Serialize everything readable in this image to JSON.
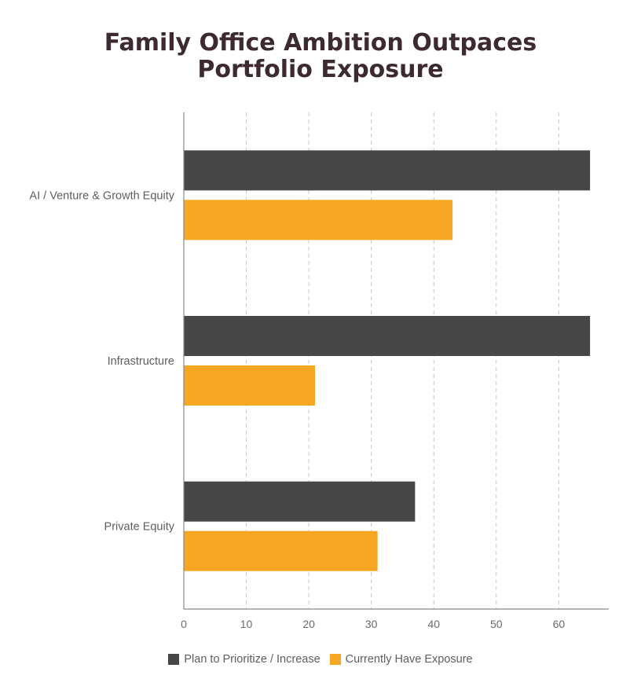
{
  "chart_data": {
    "type": "bar",
    "orientation": "horizontal",
    "title_lines": [
      "Family Office Ambition Outpaces",
      "Portfolio Exposure"
    ],
    "categories": [
      "AI / Venture & Growth Equity",
      "Infrastructure",
      "Private Equity"
    ],
    "series": [
      {
        "name": "Plan to Prioritize / Increase",
        "color": "#474747",
        "values": [
          65,
          65,
          37
        ]
      },
      {
        "name": "Currently Have Exposure",
        "color": "#f5a623",
        "values": [
          43,
          21,
          31
        ]
      }
    ],
    "xlim": [
      0,
      68
    ],
    "xticks": [
      0,
      10,
      20,
      30,
      40,
      50,
      60
    ],
    "grid": "vertical dashed",
    "legend_position": "bottom"
  }
}
